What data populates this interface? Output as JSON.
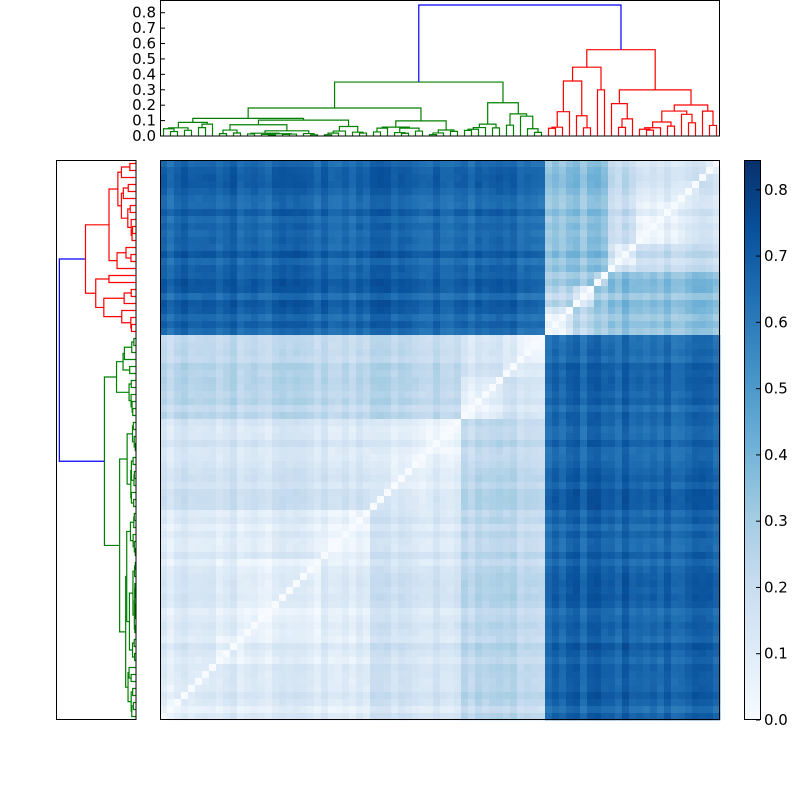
{
  "chart_data": {
    "type": "heatmap",
    "subtype": "clustered distance matrix with dendrograms",
    "colormap": "Blues",
    "vmin": 0.0,
    "vmax": 0.845,
    "n_leaves": 80,
    "clusters": [
      {
        "color": "#008000",
        "leaves": 55,
        "merge_height": 0.35
      },
      {
        "color": "#ff0000",
        "leaves": 25,
        "merge_height": 0.56
      }
    ],
    "root": {
      "color": "#0000ff",
      "merge_height": 0.85
    },
    "top_dendrogram": {
      "ylim": [
        0.0,
        0.876
      ],
      "yticks": [
        "0.0",
        "0.1",
        "0.2",
        "0.3",
        "0.4",
        "0.5",
        "0.6",
        "0.7",
        "0.8"
      ]
    },
    "colorbar": {
      "ticks": [
        "0.0",
        "0.1",
        "0.2",
        "0.3",
        "0.4",
        "0.5",
        "0.6",
        "0.7",
        "0.8"
      ]
    },
    "approx_block_values": {
      "within_green": 0.12,
      "within_red": 0.15,
      "between_clusters": 0.68
    }
  }
}
